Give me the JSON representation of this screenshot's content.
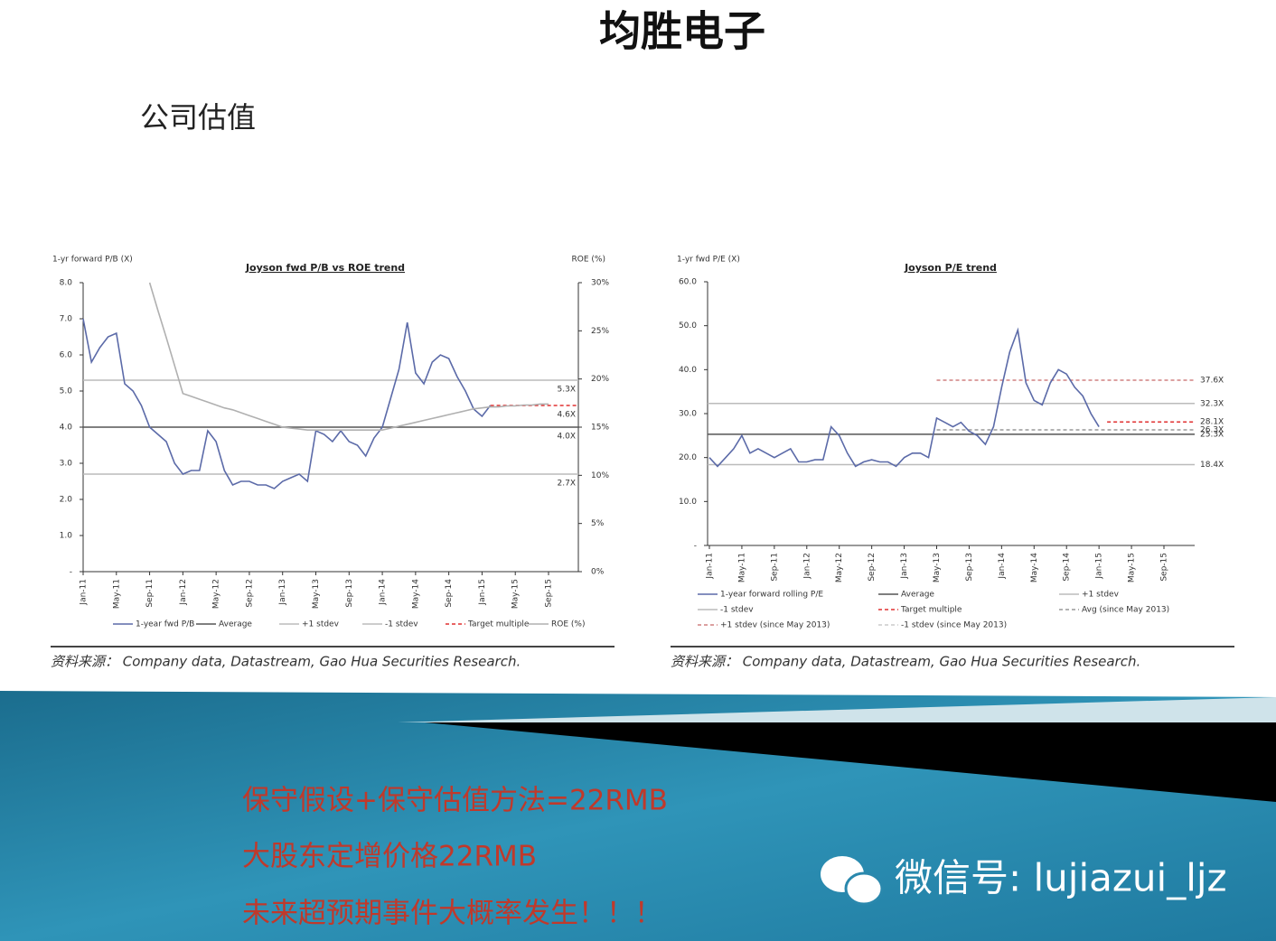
{
  "slide": {
    "title": "均胜电子",
    "subtitle": "公司估值",
    "bullets": [
      "保守假设+保守估值方法=22RMB",
      "大股东定增价格22RMB",
      "未来超预期事件大概率发生！！！"
    ],
    "wechat": "微信号: lujiazui_ljz"
  },
  "chart_data": [
    {
      "type": "line",
      "title": "Joyson fwd P/B vs ROE trend",
      "y_label": "1-yr forward P/B (X)",
      "y2_label": "ROE (%)",
      "source": "资料来源： Company data, Datastream, Gao Hua Securities Research.",
      "categories": [
        "Jan-11",
        null,
        null,
        null,
        "May-11",
        null,
        null,
        null,
        "Sep-11",
        null,
        null,
        null,
        "Jan-12",
        null,
        null,
        null,
        "May-12",
        null,
        null,
        null,
        "Sep-12",
        null,
        null,
        null,
        "Jan-13",
        null,
        null,
        null,
        "May-13",
        null,
        null,
        null,
        "Sep-13",
        null,
        null,
        null,
        "Jan-14",
        null,
        null,
        null,
        "May-14",
        null,
        null,
        null,
        "Sep-14",
        null,
        null,
        null,
        "Jan-15",
        null,
        null,
        null,
        "May-15",
        null,
        null,
        null,
        "Sep-15"
      ],
      "ylim": [
        0,
        8
      ],
      "yticks": [
        {
          "value": 0,
          "label": "-"
        },
        {
          "value": 1,
          "label": "1.0"
        },
        {
          "value": 2,
          "label": "2.0"
        },
        {
          "value": 3,
          "label": "3.0"
        },
        {
          "value": 4,
          "label": "4.0"
        },
        {
          "value": 5,
          "label": "5.0"
        },
        {
          "value": 6,
          "label": "6.0"
        },
        {
          "value": 7,
          "label": "7.0"
        },
        {
          "value": 8,
          "label": "8.0"
        }
      ],
      "y2lim": [
        0,
        30
      ],
      "y2ticks": [
        {
          "value": 0,
          "label": "0%"
        },
        {
          "value": 5,
          "label": "5%"
        },
        {
          "value": 10,
          "label": "10%"
        },
        {
          "value": 15,
          "label": "15%"
        },
        {
          "value": 20,
          "label": "20%"
        },
        {
          "value": 25,
          "label": "25%"
        },
        {
          "value": 30,
          "label": "30%"
        }
      ],
      "series": [
        {
          "name": "1-year fwd P/B",
          "color": "#5b6aa8",
          "values": [
            7.0,
            5.8,
            6.2,
            6.5,
            6.6,
            5.2,
            5.0,
            4.6,
            4.0,
            3.8,
            3.6,
            3.0,
            2.7,
            2.8,
            2.8,
            3.9,
            3.6,
            2.8,
            2.4,
            2.5,
            2.5,
            2.4,
            2.4,
            2.3,
            2.5,
            2.6,
            2.7,
            2.5,
            3.9,
            3.8,
            3.6,
            3.9,
            3.6,
            3.5,
            3.2,
            3.7,
            4.0,
            4.8,
            5.6,
            6.9,
            5.5,
            5.2,
            5.8,
            6.0,
            5.9,
            5.4,
            5.0,
            4.5,
            4.3,
            4.6,
            null,
            null,
            null,
            null,
            null,
            null,
            null
          ]
        },
        {
          "name": "ROE (%)",
          "color": "#b0b0b0",
          "axis": "y2",
          "values": [
            null,
            null,
            null,
            null,
            null,
            null,
            null,
            null,
            30,
            27.1,
            24.3,
            21.4,
            18.5,
            18.2,
            17.9,
            17.6,
            17.3,
            17.0,
            16.8,
            16.5,
            16.2,
            15.9,
            15.6,
            15.3,
            15.0,
            14.9,
            14.8,
            14.7,
            14.7,
            14.7,
            14.7,
            14.7,
            14.7,
            14.7,
            14.7,
            14.7,
            14.7,
            14.9,
            15.1,
            15.3,
            15.5,
            15.7,
            15.9,
            16.1,
            16.3,
            16.5,
            16.7,
            16.9,
            17.0,
            17.1,
            17.1,
            17.2,
            17.2,
            17.3,
            17.3,
            17.4,
            17.4
          ]
        }
      ],
      "reference_lines": [
        {
          "name": "Average",
          "value": 4.0,
          "label": "4.0X",
          "color": "#555555",
          "from_index": 0
        },
        {
          "name": "+1 stdev",
          "value": 5.3,
          "label": "5.3X",
          "color": "#bbbbbb",
          "from_index": 0
        },
        {
          "name": "-1 stdev",
          "value": 2.7,
          "label": "2.7X",
          "color": "#bbbbbb",
          "from_index": 0
        },
        {
          "name": "Target multiple",
          "value": 4.6,
          "label": "4.6X",
          "color": "#e03030",
          "dashed": true,
          "from_index": 49
        }
      ]
    },
    {
      "type": "line",
      "title": "Joyson P/E trend",
      "y_label": "1-yr fwd P/E (X)",
      "source": "资料来源： Company data, Datastream, Gao Hua Securities Research.",
      "categories": [
        "Jan-11",
        null,
        null,
        null,
        "May-11",
        null,
        null,
        null,
        "Sep-11",
        null,
        null,
        null,
        "Jan-12",
        null,
        null,
        null,
        "May-12",
        null,
        null,
        null,
        "Sep-12",
        null,
        null,
        null,
        "Jan-13",
        null,
        null,
        null,
        "May-13",
        null,
        null,
        null,
        "Sep-13",
        null,
        null,
        null,
        "Jan-14",
        null,
        null,
        null,
        "May-14",
        null,
        null,
        null,
        "Sep-14",
        null,
        null,
        null,
        "Jan-15",
        null,
        null,
        null,
        "May-15",
        null,
        null,
        null,
        "Sep-15"
      ],
      "ylim": [
        0,
        60
      ],
      "yticks": [
        {
          "value": 0,
          "label": "-"
        },
        {
          "value": 10,
          "label": "10.0"
        },
        {
          "value": 20,
          "label": "20.0"
        },
        {
          "value": 30,
          "label": "30.0"
        },
        {
          "value": 40,
          "label": "40.0"
        },
        {
          "value": 50,
          "label": "50.0"
        },
        {
          "value": 60,
          "label": "60.0"
        }
      ],
      "series": [
        {
          "name": "1-year forward rolling P/E",
          "color": "#5b6aa8",
          "values": [
            20,
            18,
            20,
            22,
            25,
            21,
            22,
            21,
            20,
            21,
            22,
            19,
            19,
            19.5,
            19.5,
            27,
            25,
            21,
            18,
            19,
            19.5,
            19,
            19,
            18,
            20,
            21,
            21,
            20,
            29,
            28,
            27,
            28,
            26,
            25,
            23,
            27,
            36,
            44,
            49,
            37,
            33,
            32,
            37,
            40,
            39,
            36,
            34,
            30,
            27,
            null,
            null,
            null,
            null,
            null,
            null,
            null,
            null
          ]
        }
      ],
      "reference_lines": [
        {
          "name": "Average",
          "value": 25.3,
          "label": "25.3X",
          "color": "#555555",
          "from_index": 0
        },
        {
          "name": "+1 stdev",
          "value": 32.3,
          "label": "32.3X",
          "color": "#bbbbbb",
          "from_index": 0
        },
        {
          "name": "-1 stdev",
          "value": 18.4,
          "label": "18.4X",
          "color": "#bbbbbb",
          "from_index": 0
        },
        {
          "name": "Target multiple",
          "value": 28.1,
          "label": "28.1X",
          "color": "#e03030",
          "dashed": true,
          "from_index": 49
        },
        {
          "name": "Avg (since May 2013)",
          "value": 26.3,
          "label": "26.3X",
          "color": "#999999",
          "dashed": true,
          "from_index": 28
        },
        {
          "name": "+1 stdev (since May 2013)",
          "value": 37.6,
          "label": "37.6X",
          "color": "#d08080",
          "dashed": true,
          "from_index": 28
        },
        {
          "name": "-1 stdev (since May 2013)",
          "color": "#cccccc",
          "dashed": true,
          "from_index": 28
        }
      ]
    }
  ]
}
